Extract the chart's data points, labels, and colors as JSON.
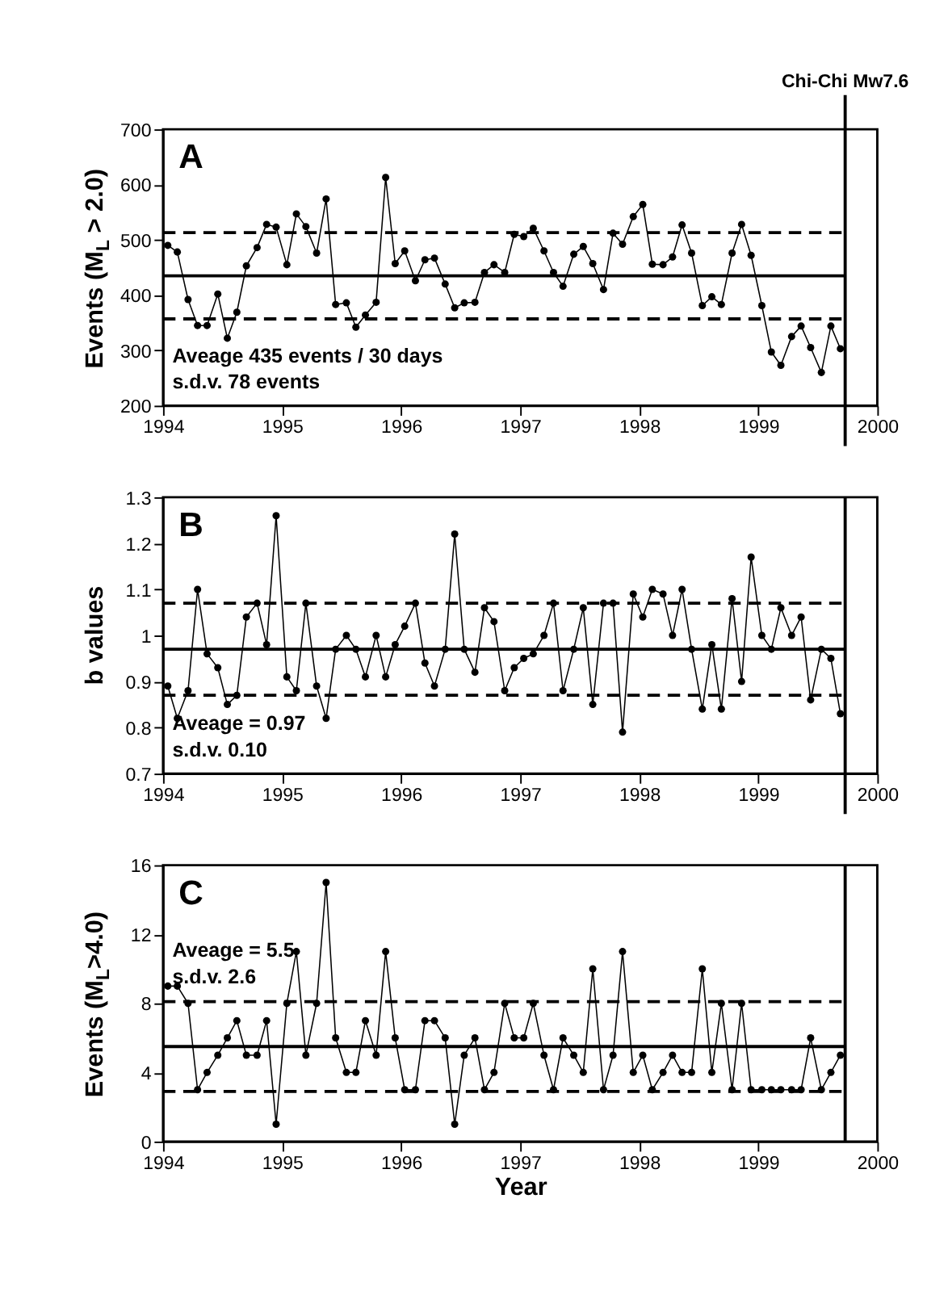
{
  "chart_data": [
    {
      "type": "line",
      "ylabel": "Events (M$_{L}$ > 2.0)",
      "marker": "circle",
      "line_style": "solid",
      "x": [
        1994.04,
        1994.12,
        1994.21,
        1994.29,
        1994.37,
        1994.46,
        1994.54,
        1994.62,
        1994.7,
        1994.79,
        1994.87,
        1994.95,
        1995.04,
        1995.12,
        1995.2,
        1995.29,
        1995.37,
        1995.45,
        1995.54,
        1995.62,
        1995.7,
        1995.79,
        1995.87,
        1995.95,
        1996.03,
        1996.12,
        1996.2,
        1996.28,
        1996.37,
        1996.45,
        1996.53,
        1996.62,
        1996.7,
        1996.78,
        1996.87,
        1996.95,
        1997.03,
        1997.11,
        1997.2,
        1997.28,
        1997.36,
        1997.45,
        1997.53,
        1997.61,
        1997.7,
        1997.78,
        1997.86,
        1997.95,
        1998.03,
        1998.11,
        1998.2,
        1998.28,
        1998.36,
        1998.44,
        1998.53,
        1998.61,
        1998.69,
        1998.78,
        1998.86,
        1998.94,
        1999.03,
        1999.11,
        1999.19,
        1999.28,
        1999.36,
        1999.44,
        1999.53,
        1999.61,
        1999.69
      ],
      "series": [
        {
          "color": "#000000",
          "values": [
            490,
            478,
            392,
            345,
            345,
            402,
            322,
            369,
            453,
            486,
            528,
            523,
            455,
            547,
            524,
            476,
            574,
            383,
            386,
            342,
            364,
            387,
            613,
            457,
            480,
            426,
            464,
            467,
            420,
            377,
            386,
            387,
            441,
            455,
            441,
            510,
            506,
            521,
            480,
            441,
            416,
            474,
            488,
            457,
            410,
            512,
            492,
            542,
            564,
            456,
            455,
            469,
            527,
            476,
            381,
            397,
            383,
            476,
            528,
            472,
            381,
            297,
            273,
            325,
            344,
            305,
            260,
            344,
            303
          ]
        }
      ],
      "xlim": [
        1994,
        2000
      ],
      "xticks": [
        1994,
        1995,
        1996,
        1997,
        1998,
        1999,
        2000
      ],
      "ylim": [
        200,
        700
      ],
      "yticks": [
        200,
        300,
        400,
        500,
        600,
        700
      ],
      "ref_lines": [
        {
          "axis": "x",
          "value": 1999.73,
          "label": "Chi-Chi Mw7.6",
          "line_style": "solid"
        },
        {
          "axis": "y",
          "value": 435,
          "line_style": "solid"
        },
        {
          "axis": "y",
          "value": 513,
          "line_style": "dashed"
        },
        {
          "axis": "y",
          "value": 357,
          "line_style": "dashed"
        }
      ],
      "annotations": [
        "A",
        "Aveage 435 events / 30 days",
        "s.d.v. 78 events"
      ]
    },
    {
      "type": "line",
      "ylabel": "b values",
      "marker": "circle",
      "line_style": "solid",
      "x": [
        1994.04,
        1994.12,
        1994.21,
        1994.29,
        1994.37,
        1994.46,
        1994.54,
        1994.62,
        1994.7,
        1994.79,
        1994.87,
        1994.95,
        1995.04,
        1995.12,
        1995.2,
        1995.29,
        1995.37,
        1995.45,
        1995.54,
        1995.62,
        1995.7,
        1995.79,
        1995.87,
        1995.95,
        1996.03,
        1996.12,
        1996.2,
        1996.28,
        1996.37,
        1996.45,
        1996.53,
        1996.62,
        1996.7,
        1996.78,
        1996.87,
        1996.95,
        1997.03,
        1997.11,
        1997.2,
        1997.28,
        1997.36,
        1997.45,
        1997.53,
        1997.61,
        1997.7,
        1997.78,
        1997.86,
        1997.95,
        1998.03,
        1998.11,
        1998.2,
        1998.28,
        1998.36,
        1998.44,
        1998.53,
        1998.61,
        1998.69,
        1998.78,
        1998.86,
        1998.94,
        1999.03,
        1999.11,
        1999.19,
        1999.28,
        1999.36,
        1999.44,
        1999.53,
        1999.61,
        1999.69
      ],
      "series": [
        {
          "color": "#000000",
          "values": [
            0.89,
            0.82,
            0.88,
            1.1,
            0.96,
            0.93,
            0.85,
            0.87,
            1.04,
            1.07,
            0.98,
            1.26,
            0.91,
            0.88,
            1.07,
            0.89,
            0.82,
            0.97,
            1.0,
            0.97,
            0.91,
            1.0,
            0.91,
            0.98,
            1.02,
            1.07,
            0.94,
            0.89,
            0.97,
            1.22,
            0.97,
            0.92,
            1.06,
            1.03,
            0.88,
            0.93,
            0.95,
            0.96,
            1.0,
            1.07,
            0.88,
            0.97,
            1.06,
            0.85,
            1.07,
            1.07,
            0.79,
            1.09,
            1.04,
            1.1,
            1.09,
            1.0,
            1.1,
            0.97,
            0.84,
            0.98,
            0.84,
            1.08,
            0.9,
            1.17,
            1.0,
            0.97,
            1.06,
            1.0,
            1.04,
            0.86,
            0.97,
            0.95,
            0.83
          ]
        }
      ],
      "xlim": [
        1994,
        2000
      ],
      "xticks": [
        1994,
        1995,
        1996,
        1997,
        1998,
        1999,
        2000
      ],
      "ylim": [
        0.7,
        1.3
      ],
      "yticks": [
        0.7,
        0.8,
        0.9,
        1,
        1.1,
        1.2,
        1.3
      ],
      "ref_lines": [
        {
          "axis": "x",
          "value": 1999.73,
          "line_style": "solid"
        },
        {
          "axis": "y",
          "value": 0.97,
          "line_style": "solid"
        },
        {
          "axis": "y",
          "value": 1.07,
          "line_style": "dashed"
        },
        {
          "axis": "y",
          "value": 0.87,
          "line_style": "dashed"
        }
      ],
      "annotations": [
        "B",
        "Aveage = 0.97",
        "s.d.v. 0.10"
      ]
    },
    {
      "type": "line",
      "ylabel": "Events (M$_{L}$>4.0)",
      "xlabel": "Year",
      "marker": "circle",
      "line_style": "solid",
      "x": [
        1994.04,
        1994.12,
        1994.21,
        1994.29,
        1994.37,
        1994.46,
        1994.54,
        1994.62,
        1994.7,
        1994.79,
        1994.87,
        1994.95,
        1995.04,
        1995.12,
        1995.2,
        1995.29,
        1995.37,
        1995.45,
        1995.54,
        1995.62,
        1995.7,
        1995.79,
        1995.87,
        1995.95,
        1996.03,
        1996.12,
        1996.2,
        1996.28,
        1996.37,
        1996.45,
        1996.53,
        1996.62,
        1996.7,
        1996.78,
        1996.87,
        1996.95,
        1997.03,
        1997.11,
        1997.2,
        1997.28,
        1997.36,
        1997.45,
        1997.53,
        1997.61,
        1997.7,
        1997.78,
        1997.86,
        1997.95,
        1998.03,
        1998.11,
        1998.2,
        1998.28,
        1998.36,
        1998.44,
        1998.53,
        1998.61,
        1998.69,
        1998.78,
        1998.86,
        1998.94,
        1999.03,
        1999.11,
        1999.19,
        1999.28,
        1999.36,
        1999.44,
        1999.53,
        1999.61,
        1999.69
      ],
      "series": [
        {
          "color": "#000000",
          "values": [
            9,
            9,
            8,
            3,
            4,
            5,
            6,
            7,
            5,
            5,
            7,
            1,
            8,
            11,
            5,
            8,
            15,
            6,
            4,
            4,
            7,
            5,
            11,
            6,
            3,
            3,
            7,
            7,
            6,
            1,
            5,
            6,
            3,
            4,
            8,
            6,
            6,
            8,
            5,
            3,
            6,
            5,
            4,
            10,
            3,
            5,
            11,
            4,
            5,
            3,
            4,
            5,
            4,
            4,
            10,
            4,
            8,
            3,
            8,
            3,
            3,
            3,
            3,
            3,
            3,
            6,
            3,
            4,
            5
          ]
        }
      ],
      "xlim": [
        1994,
        2000
      ],
      "xticks": [
        1994,
        1995,
        1996,
        1997,
        1998,
        1999,
        2000
      ],
      "ylim": [
        0,
        16
      ],
      "yticks": [
        0,
        4,
        8,
        12,
        16
      ],
      "ref_lines": [
        {
          "axis": "x",
          "value": 1999.73,
          "line_style": "solid"
        },
        {
          "axis": "y",
          "value": 5.5,
          "line_style": "solid"
        },
        {
          "axis": "y",
          "value": 8.1,
          "line_style": "dashed"
        },
        {
          "axis": "y",
          "value": 2.9,
          "line_style": "dashed"
        }
      ],
      "annotations": [
        "C",
        "Aveage = 5.5",
        "s.d.v. 2.6"
      ]
    }
  ]
}
